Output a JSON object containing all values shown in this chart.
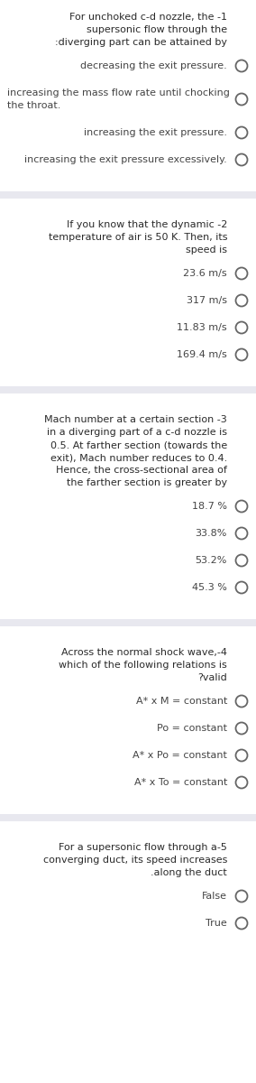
{
  "bg_color": "#ffffff",
  "separator_color": "#e8e8ef",
  "text_color": "#2a2a2a",
  "option_text_color": "#444444",
  "circle_color": "#666666",
  "font_size": 8.0,
  "questions": [
    {
      "text_lines": [
        "For unchoked c-d nozzle, the -1",
        "supersonic flow through the",
        ":diverging part can be attained by"
      ],
      "text_align": "right",
      "options": [
        {
          "text": "decreasing the exit pressure.",
          "align": "right",
          "multiline": false
        },
        {
          "text": "increasing the mass flow rate until chocking\nthe throat.",
          "align": "left",
          "multiline": true
        },
        {
          "text": "increasing the exit pressure.",
          "align": "right",
          "multiline": false
        },
        {
          "text": "increasing the exit pressure excessively.",
          "align": "right",
          "multiline": false
        }
      ]
    },
    {
      "text_lines": [
        "If you know that the dynamic -2",
        "temperature of air is 50 K. Then, its",
        "speed is"
      ],
      "text_align": "right",
      "options": [
        {
          "text": "23.6 m/s",
          "align": "right",
          "multiline": false
        },
        {
          "text": "317 m/s",
          "align": "right",
          "multiline": false
        },
        {
          "text": "11.83 m/s",
          "align": "right",
          "multiline": false
        },
        {
          "text": "169.4 m/s",
          "align": "right",
          "multiline": false
        }
      ]
    },
    {
      "text_lines": [
        "Mach number at a certain section -3",
        "in a diverging part of a c-d nozzle is",
        "0.5. At farther section (towards the",
        "exit), Mach number reduces to 0.4.",
        "Hence, the cross-sectional area of",
        "the farther section is greater by"
      ],
      "text_align": "right",
      "options": [
        {
          "text": "18.7 %",
          "align": "right",
          "multiline": false
        },
        {
          "text": "33.8%",
          "align": "right",
          "multiline": false
        },
        {
          "text": "53.2%",
          "align": "right",
          "multiline": false
        },
        {
          "text": "45.3 %",
          "align": "right",
          "multiline": false
        }
      ]
    },
    {
      "text_lines": [
        "Across the normal shock wave,-4",
        "which of the following relations is",
        "?valid"
      ],
      "text_align": "right",
      "options": [
        {
          "text": "A* x M = constant",
          "align": "right",
          "multiline": false
        },
        {
          "text": "Po = constant",
          "align": "right",
          "multiline": false
        },
        {
          "text": "A* x Po = constant",
          "align": "right",
          "multiline": false
        },
        {
          "text": "A* x To = constant",
          "align": "right",
          "multiline": false
        }
      ]
    },
    {
      "text_lines": [
        "For a supersonic flow through a-5",
        "converging duct, its speed increases",
        ".along the duct"
      ],
      "text_align": "right",
      "options": [
        {
          "text": "False",
          "align": "right",
          "multiline": false
        },
        {
          "text": "True",
          "align": "right",
          "multiline": false
        }
      ]
    }
  ]
}
